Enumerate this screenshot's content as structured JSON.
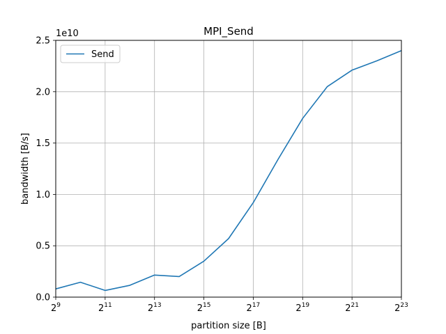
{
  "chart_data": {
    "type": "line",
    "title": "MPI_Send",
    "xlabel": "partition size [B]",
    "ylabel": "bandwidth [B/s]",
    "y_offset_label": "1e10",
    "x_scale": "log2",
    "x": [
      512,
      1024,
      2048,
      4096,
      8192,
      16384,
      32768,
      65536,
      131072,
      262144,
      524288,
      1048576,
      2097152,
      4194304,
      8388608
    ],
    "series": [
      {
        "name": "Send",
        "color": "#1f77b4",
        "values": [
          800000000.0,
          1450000000.0,
          650000000.0,
          1150000000.0,
          2150000000.0,
          2000000000.0,
          3500000000.0,
          5700000000.0,
          9200000000.0,
          13400000000.0,
          17400000000.0,
          20500000000.0,
          22100000000.0,
          23000000000.0,
          24000000000.0
        ]
      }
    ],
    "xlim": [
      512,
      8388608
    ],
    "ylim": [
      0,
      25000000000.0
    ],
    "x_ticks": [
      {
        "value": 512,
        "base": "2",
        "exp": "9"
      },
      {
        "value": 2048,
        "base": "2",
        "exp": "11"
      },
      {
        "value": 8192,
        "base": "2",
        "exp": "13"
      },
      {
        "value": 32768,
        "base": "2",
        "exp": "15"
      },
      {
        "value": 131072,
        "base": "2",
        "exp": "17"
      },
      {
        "value": 524288,
        "base": "2",
        "exp": "19"
      },
      {
        "value": 2097152,
        "base": "2",
        "exp": "21"
      },
      {
        "value": 8388608,
        "base": "2",
        "exp": "23"
      }
    ],
    "y_ticks": [
      {
        "value": 0,
        "label": "0.0"
      },
      {
        "value": 5000000000.0,
        "label": "0.5"
      },
      {
        "value": 10000000000.0,
        "label": "1.0"
      },
      {
        "value": 15000000000.0,
        "label": "1.5"
      },
      {
        "value": 20000000000.0,
        "label": "2.0"
      },
      {
        "value": 25000000000.0,
        "label": "2.5"
      }
    ],
    "grid": true,
    "legend_position": "top-left"
  }
}
